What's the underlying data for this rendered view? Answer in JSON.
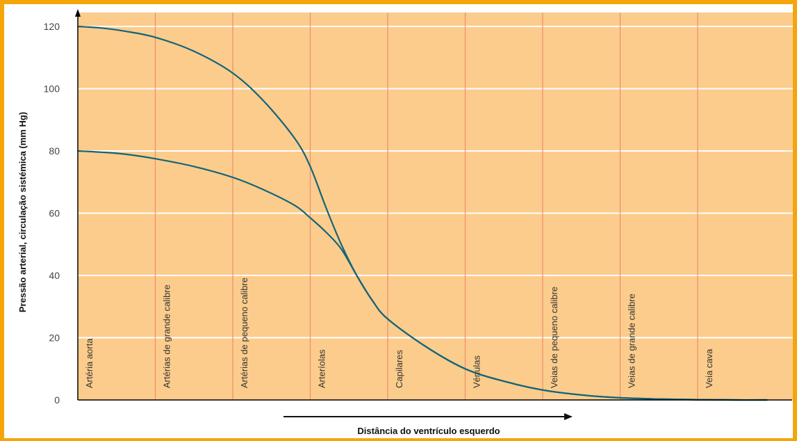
{
  "chart_data": {
    "type": "line",
    "ylabel": "Pressão arterial, circulação sistémica (mm Hg)",
    "xlabel": "Distância do ventrículo esquerdo",
    "ylim": [
      0,
      120
    ],
    "yticks": [
      "0",
      "20",
      "40",
      "60",
      "80",
      "100",
      "120"
    ],
    "grid": true,
    "categories": [
      "Artéria aorta",
      "Artérias de grande calibre",
      "Artérias de pequeno calibre",
      "Arteríolas",
      "Capilares",
      "Vénulas",
      "Veias de pequeno calibre",
      "Veias de grande calibre",
      "Veia cava"
    ],
    "series": [
      {
        "x": [
          0,
          0.3,
          0.6,
          1.0,
          1.5,
          2.0,
          2.4,
          2.8,
          3.0,
          3.2,
          3.4,
          3.6,
          3.8,
          4.0,
          4.5,
          5.0,
          5.5,
          6.0,
          6.5,
          7.0,
          7.5,
          8.0,
          8.5,
          8.9
        ],
        "y": [
          120,
          119.5,
          118.5,
          116.5,
          112,
          105,
          96,
          84,
          75,
          62,
          50,
          40,
          32,
          26,
          17,
          10,
          6,
          3.2,
          1.6,
          0.7,
          0.3,
          0.1,
          0,
          0
        ]
      },
      {
        "x": [
          0,
          0.3,
          0.6,
          1.0,
          1.5,
          2.0,
          2.4,
          2.8,
          3.0,
          3.2,
          3.4,
          3.6,
          3.8,
          4.0,
          4.5,
          5.0,
          5.5,
          6.0,
          6.5,
          7.0,
          7.5,
          8.0,
          8.5,
          8.9
        ],
        "y": [
          80,
          79.6,
          79,
          77.5,
          75,
          71.5,
          67.5,
          62.5,
          58.5,
          54,
          48.5,
          40,
          32,
          26,
          17,
          10,
          6,
          3.2,
          1.6,
          0.7,
          0.3,
          0.1,
          0,
          0
        ]
      }
    ],
    "colors": {
      "plot_background": "#fccc8c",
      "frame": "#f5a50a",
      "gridline": "#ffffff",
      "category_line": "#f08c6e",
      "curve": "#12647a",
      "axis": "#000000"
    }
  }
}
